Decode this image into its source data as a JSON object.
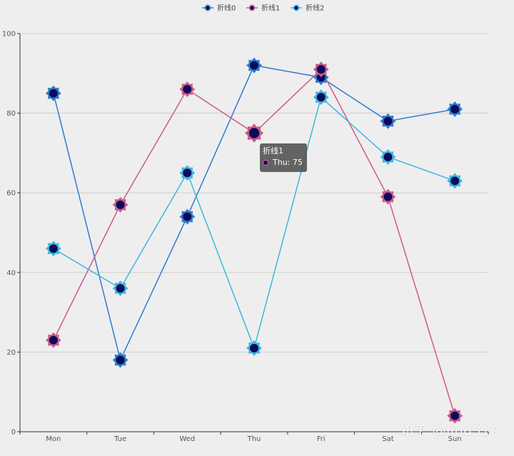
{
  "chart_data": {
    "type": "line",
    "categories": [
      "Mon",
      "Tue",
      "Wed",
      "Thu",
      "Fri",
      "Sat",
      "Sun"
    ],
    "ylim": [
      0,
      100
    ],
    "yticks": [
      0,
      20,
      40,
      60,
      80,
      100
    ],
    "grid": true,
    "legend_position": "top-center",
    "series": [
      {
        "name": "折线0",
        "values": [
          85,
          18,
          54,
          92,
          89,
          78,
          81
        ],
        "color": "#2e7ccc"
      },
      {
        "name": "折线1",
        "values": [
          23,
          57,
          86,
          75,
          91,
          59,
          4
        ],
        "color": "#cc5a8a"
      },
      {
        "name": "折线2",
        "values": [
          46,
          36,
          65,
          21,
          84,
          69,
          63
        ],
        "color": "#3cb8e0"
      }
    ],
    "marker_fill": "#0b0b5a"
  },
  "tooltip": {
    "title": "折线1",
    "text": "Thu: 75"
  },
  "watermark": "知乎 @ling310"
}
